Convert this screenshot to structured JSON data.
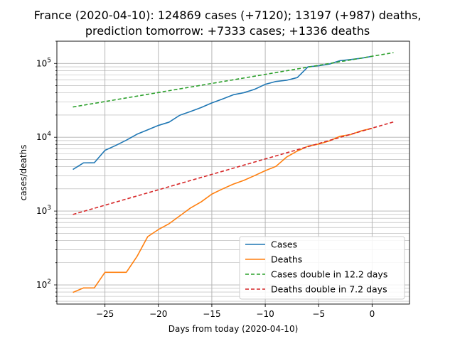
{
  "chart_data": {
    "type": "line",
    "title_line1": "France (2020-04-10): 124869 cases (+7120); 13197 (+987) deaths,",
    "title_line2": "prediction tomorrow: +7333 cases;  +1336 deaths",
    "xlabel": "Days from today (2020-04-10)",
    "ylabel": "cases/deaths",
    "xlim": [
      -29.5,
      3.5
    ],
    "ylim": [
      55,
      200000
    ],
    "yscale": "log",
    "grid": true,
    "legend_position": "lower right",
    "x_ticks": [
      -25,
      -20,
      -15,
      -10,
      -5,
      0
    ],
    "y_ticks": [
      {
        "value": 100,
        "base": "10",
        "exp": "2"
      },
      {
        "value": 1000,
        "base": "10",
        "exp": "3"
      },
      {
        "value": 10000,
        "base": "10",
        "exp": "4"
      },
      {
        "value": 100000,
        "base": "10",
        "exp": "5"
      }
    ],
    "series": [
      {
        "name": "Cases",
        "color": "#1f77b4",
        "style": "solid",
        "x": [
          -28,
          -27,
          -26,
          -25,
          -24,
          -23,
          -22,
          -21,
          -20,
          -19,
          -18,
          -17,
          -16,
          -15,
          -14,
          -13,
          -12,
          -11,
          -10,
          -9,
          -8,
          -7,
          -6,
          -5,
          -4,
          -3,
          -2,
          -1,
          0
        ],
        "y": [
          3661,
          4499,
          4513,
          6650,
          7730,
          9134,
          10995,
          12612,
          14459,
          16018,
          19856,
          22304,
          25233,
          29155,
          32964,
          37575,
          40174,
          44550,
          52128,
          56989,
          59105,
          64338,
          89953,
          92839,
          98010,
          109069,
          112950,
          117749,
          124869
        ]
      },
      {
        "name": "Deaths",
        "color": "#ff7f0e",
        "style": "solid",
        "x": [
          -28,
          -27,
          -26,
          -25,
          -24,
          -23,
          -22,
          -21,
          -20,
          -19,
          -18,
          -17,
          -16,
          -15,
          -14,
          -13,
          -12,
          -11,
          -10,
          -9,
          -8,
          -7,
          -6,
          -5,
          -4,
          -3,
          -2,
          -1,
          0
        ],
        "y": [
          79,
          91,
          91,
          148,
          148,
          148,
          243,
          450,
          562,
          674,
          860,
          1100,
          1331,
          1696,
          1995,
          2314,
          2606,
          3024,
          3523,
          4032,
          5387,
          6507,
          7560,
          8078,
          8911,
          10328,
          10869,
          12210,
          13197
        ]
      },
      {
        "name": "Cases double in 12.2 days",
        "color": "#2ca02c",
        "style": "dashed",
        "x": [
          -28,
          2
        ],
        "y": [
          25700,
          140000
        ]
      },
      {
        "name": "Deaths double in 7.2 days",
        "color": "#d62728",
        "style": "dashed",
        "x": [
          -28,
          2
        ],
        "y": [
          900,
          16100
        ]
      }
    ]
  }
}
